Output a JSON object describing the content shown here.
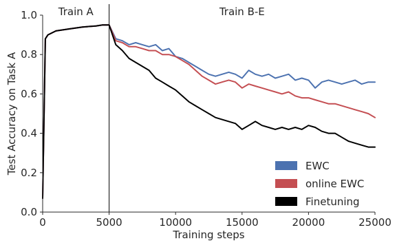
{
  "chart_data": {
    "type": "line",
    "title": "",
    "xlabel": "Training steps",
    "ylabel": "Test Accuracy on Task A",
    "xlim": [
      0,
      25000
    ],
    "ylim": [
      0.0,
      1.0
    ],
    "xticks": [
      0,
      5000,
      10000,
      15000,
      20000,
      25000
    ],
    "xtick_labels": [
      "0",
      "5000",
      "10000",
      "15000",
      "20000",
      "25000"
    ],
    "yticks": [
      0.0,
      0.2,
      0.4,
      0.6,
      0.8,
      1.0
    ],
    "ytick_labels": [
      "0.0",
      "0.2",
      "0.4",
      "0.6",
      "0.8",
      "1.0"
    ],
    "grid": false,
    "legend_position": "lower-right",
    "annotations": [
      {
        "text": "Train A",
        "x": 2500
      },
      {
        "text": "Train B-E",
        "x": 15000
      }
    ],
    "vertical_line_x": 5000,
    "series": [
      {
        "name": "EWC",
        "color": "#4c72b0",
        "x": [
          0,
          200,
          400,
          1000,
          2000,
          3000,
          4000,
          4500,
          5000,
          5500,
          6000,
          6500,
          7000,
          7500,
          8000,
          8500,
          9000,
          9500,
          10000,
          10500,
          11000,
          11500,
          12000,
          12500,
          13000,
          13500,
          14000,
          14500,
          15000,
          15500,
          16000,
          16500,
          17000,
          17500,
          18000,
          18500,
          19000,
          19500,
          20000,
          20500,
          21000,
          21500,
          22000,
          22500,
          23000,
          23500,
          24000,
          24500,
          25000
        ],
        "y": [
          0.07,
          0.88,
          0.9,
          0.92,
          0.93,
          0.94,
          0.945,
          0.95,
          0.95,
          0.88,
          0.87,
          0.85,
          0.86,
          0.85,
          0.84,
          0.85,
          0.82,
          0.83,
          0.79,
          0.78,
          0.76,
          0.74,
          0.72,
          0.7,
          0.69,
          0.7,
          0.71,
          0.7,
          0.68,
          0.72,
          0.7,
          0.69,
          0.7,
          0.68,
          0.69,
          0.7,
          0.67,
          0.68,
          0.67,
          0.63,
          0.66,
          0.67,
          0.66,
          0.65,
          0.66,
          0.67,
          0.65,
          0.66,
          0.66
        ]
      },
      {
        "name": "online EWC",
        "color": "#c44e52",
        "x": [
          0,
          200,
          400,
          1000,
          2000,
          3000,
          4000,
          4500,
          5000,
          5500,
          6000,
          6500,
          7000,
          7500,
          8000,
          8500,
          9000,
          9500,
          10000,
          10500,
          11000,
          11500,
          12000,
          12500,
          13000,
          13500,
          14000,
          14500,
          15000,
          15500,
          16000,
          16500,
          17000,
          17500,
          18000,
          18500,
          19000,
          19500,
          20000,
          20500,
          21000,
          21500,
          22000,
          22500,
          23000,
          23500,
          24000,
          24500,
          25000
        ],
        "y": [
          0.07,
          0.88,
          0.9,
          0.92,
          0.93,
          0.94,
          0.945,
          0.95,
          0.95,
          0.87,
          0.86,
          0.84,
          0.84,
          0.83,
          0.82,
          0.82,
          0.8,
          0.8,
          0.79,
          0.77,
          0.75,
          0.72,
          0.69,
          0.67,
          0.65,
          0.66,
          0.67,
          0.66,
          0.63,
          0.65,
          0.64,
          0.63,
          0.62,
          0.61,
          0.6,
          0.61,
          0.59,
          0.58,
          0.58,
          0.57,
          0.56,
          0.55,
          0.55,
          0.54,
          0.53,
          0.52,
          0.51,
          0.5,
          0.48
        ]
      },
      {
        "name": "Finetuning",
        "color": "#000000",
        "x": [
          0,
          200,
          400,
          1000,
          2000,
          3000,
          4000,
          4500,
          5000,
          5500,
          6000,
          6500,
          7000,
          7500,
          8000,
          8500,
          9000,
          9500,
          10000,
          10500,
          11000,
          11500,
          12000,
          12500,
          13000,
          13500,
          14000,
          14500,
          15000,
          15500,
          16000,
          16500,
          17000,
          17500,
          18000,
          18500,
          19000,
          19500,
          20000,
          20500,
          21000,
          21500,
          22000,
          22500,
          23000,
          23500,
          24000,
          24500,
          25000
        ],
        "y": [
          0.07,
          0.88,
          0.9,
          0.92,
          0.93,
          0.94,
          0.945,
          0.95,
          0.95,
          0.85,
          0.82,
          0.78,
          0.76,
          0.74,
          0.72,
          0.68,
          0.66,
          0.64,
          0.62,
          0.59,
          0.56,
          0.54,
          0.52,
          0.5,
          0.48,
          0.47,
          0.46,
          0.45,
          0.42,
          0.44,
          0.46,
          0.44,
          0.43,
          0.42,
          0.43,
          0.42,
          0.43,
          0.42,
          0.44,
          0.43,
          0.41,
          0.4,
          0.4,
          0.38,
          0.36,
          0.35,
          0.34,
          0.33,
          0.33
        ]
      }
    ]
  }
}
